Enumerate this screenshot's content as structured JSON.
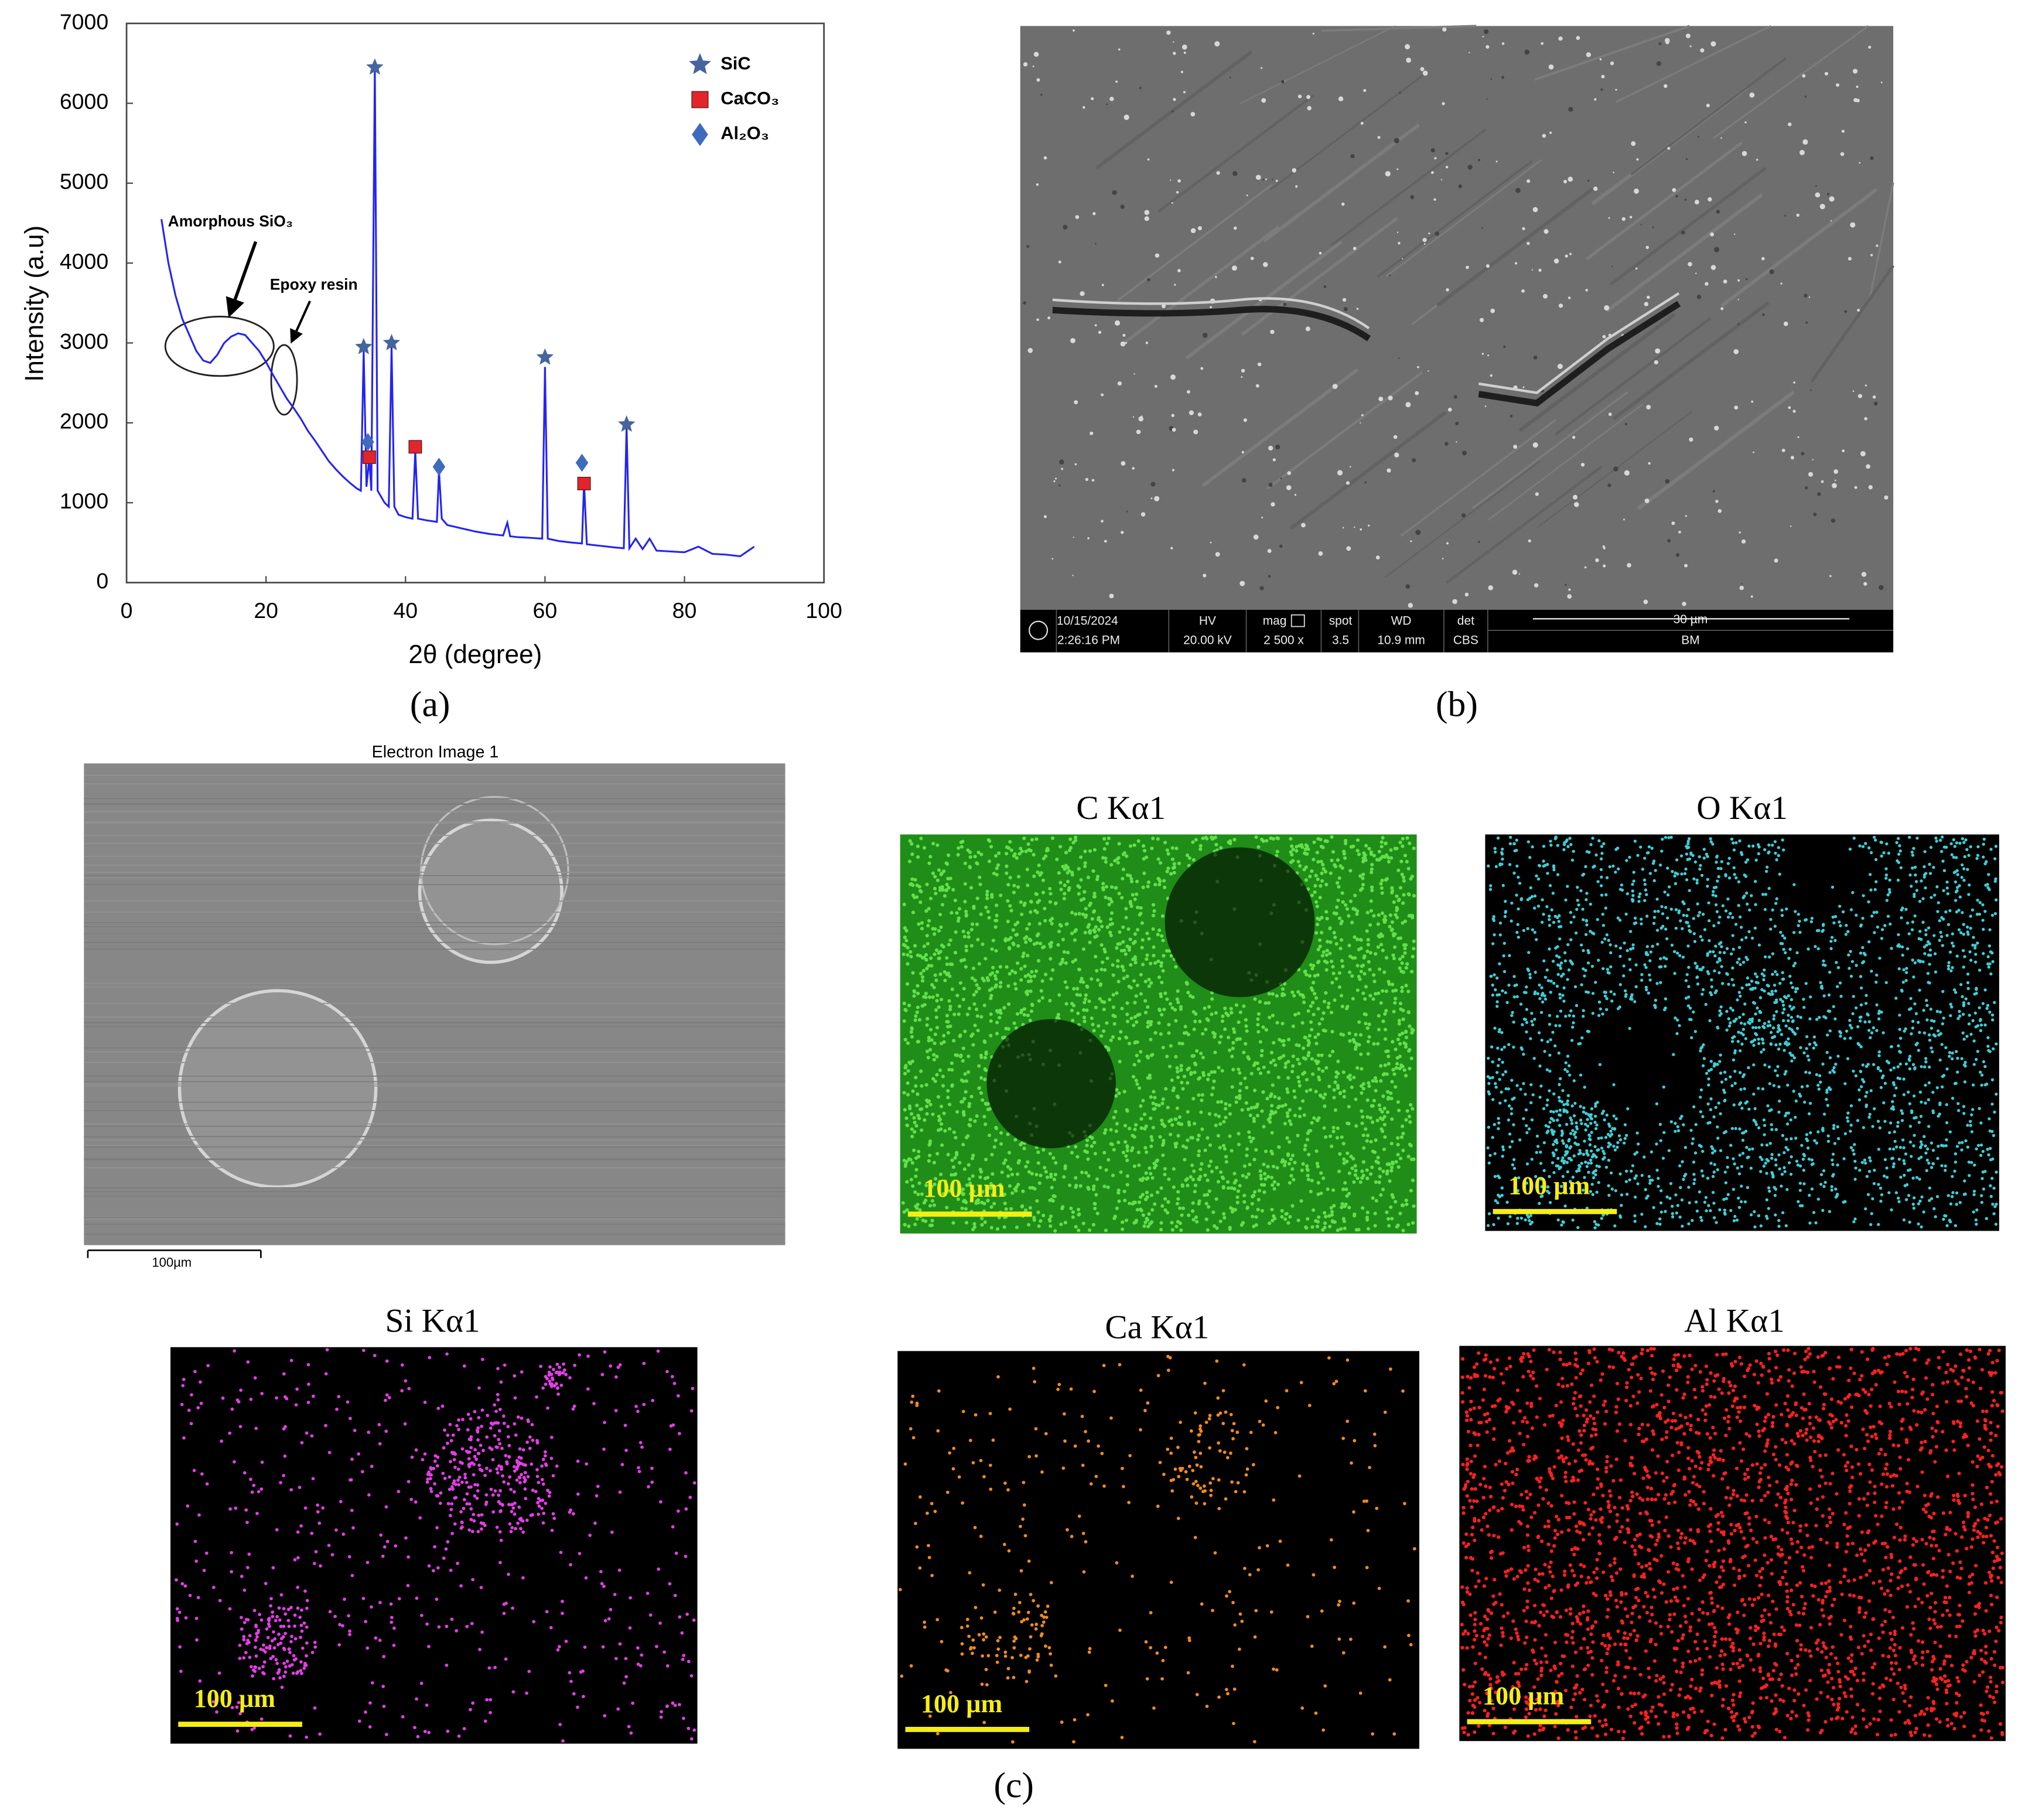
{
  "chart_data": {
    "type": "line",
    "xlabel": "2θ (degree)",
    "ylabel": "Intensity (a.u)",
    "xlim": [
      0,
      100
    ],
    "ylim": [
      0,
      7000
    ],
    "xticks": [
      0,
      20,
      40,
      60,
      80,
      100
    ],
    "yticks": [
      0,
      1000,
      2000,
      3000,
      4000,
      5000,
      6000,
      7000
    ],
    "color": "#2323f5",
    "x": [
      5,
      6,
      7,
      8,
      9,
      10,
      11,
      12,
      13,
      14,
      15,
      16,
      17,
      18,
      19,
      20,
      21,
      22,
      23,
      24,
      25,
      26,
      27,
      28,
      29,
      30,
      31,
      32,
      33,
      33.6,
      34,
      34.4,
      34.8,
      35.1,
      35.6,
      36,
      37,
      37.6,
      38,
      38.4,
      39,
      40,
      41,
      41.4,
      41.8,
      43,
      44.5,
      44.8,
      45.2,
      46,
      48,
      50,
      52,
      54,
      54.6,
      55,
      56,
      58,
      59.6,
      60,
      60.4,
      62,
      64,
      65.3,
      65.6,
      66,
      68,
      70,
      71.3,
      71.7,
      72.1,
      73,
      74,
      75,
      76,
      78,
      80,
      82,
      84,
      86,
      88,
      90
    ],
    "values": [
      4550,
      4000,
      3600,
      3300,
      3100,
      2900,
      2780,
      2750,
      2850,
      3000,
      3080,
      3120,
      3100,
      3000,
      2900,
      2760,
      2600,
      2450,
      2300,
      2180,
      2050,
      1900,
      1780,
      1650,
      1520,
      1420,
      1330,
      1250,
      1180,
      1150,
      2900,
      1200,
      1550,
      1150,
      6450,
      1150,
      1000,
      950,
      2950,
      950,
      850,
      820,
      800,
      1650,
      800,
      780,
      760,
      1400,
      800,
      720,
      680,
      640,
      610,
      590,
      750,
      580,
      570,
      560,
      550,
      2700,
      550,
      520,
      500,
      490,
      1250,
      480,
      460,
      440,
      430,
      1950,
      430,
      550,
      420,
      550,
      400,
      390,
      380,
      450,
      360,
      350,
      330,
      450
    ],
    "markers": [
      {
        "name": "SiC",
        "shape": "star",
        "color": "#46659f",
        "x": [
          34,
          35.6,
          38,
          60,
          71.7
        ],
        "y": [
          2950,
          6450,
          3000,
          2820,
          1980
        ]
      },
      {
        "name": "CaCO₃",
        "shape": "square",
        "color": "#e3242b",
        "x": [
          34.8,
          41.4,
          65.6
        ],
        "y": [
          1570,
          1700,
          1240
        ]
      },
      {
        "name": "Al₂O₃",
        "shape": "diamond",
        "color": "#3f6bbf",
        "x": [
          34.6,
          44.8,
          65.3
        ],
        "y": [
          1760,
          1450,
          1500
        ]
      }
    ],
    "annotations": [
      "Amorphous SiO₃",
      "Epoxy resin"
    ]
  },
  "panel_labels": [
    "(a)",
    "(b)",
    "(c)"
  ],
  "sem_info": {
    "date": "10/15/2024",
    "time": "2:26:16 PM",
    "hv_label": "HV",
    "hv": "20.00 kV",
    "mag_label": "mag",
    "mag": "2 500 x",
    "spot_label": "spot",
    "spot": "3.5",
    "wd_label": "WD",
    "wd": "10.9 mm",
    "det_label": "det",
    "det": "CBS",
    "scale": "30 µm",
    "mode": "BM"
  },
  "electron_image": {
    "title": "Electron Image 1",
    "scale": "100µm"
  },
  "maps": [
    {
      "title": "C Kα1",
      "scale": "100 µm"
    },
    {
      "title": "O Kα1",
      "scale": "100 µm"
    },
    {
      "title": "Si Kα1",
      "scale": "100 µm"
    },
    {
      "title": "Ca Kα1",
      "scale": "100 µm"
    },
    {
      "title": "Al Kα1",
      "scale": "100 µm"
    }
  ]
}
